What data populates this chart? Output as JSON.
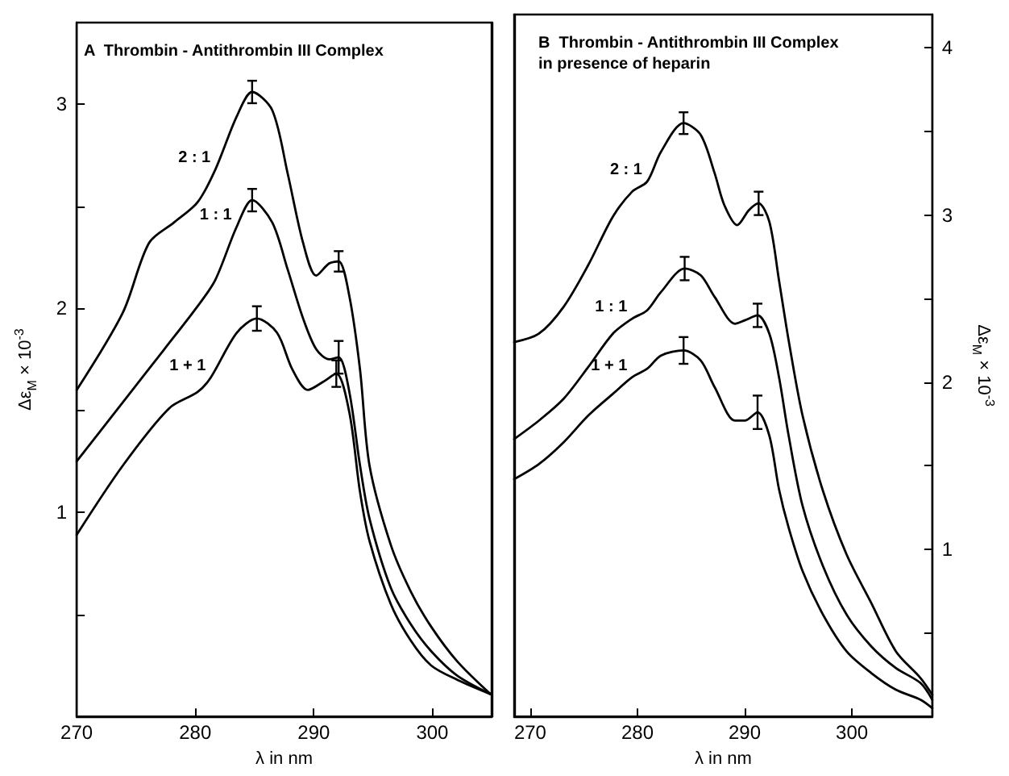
{
  "chart_data": [
    {
      "type": "line",
      "title": "A  Thrombin - Antithrombin III Complex",
      "xlabel": "λ in nm",
      "ylabel": "Δε$_{M}$ × 10$^{-3}$",
      "xlim": [
        270,
        305
      ],
      "xticks": [
        270,
        280,
        290,
        300
      ],
      "ylim": [
        0,
        3.4
      ],
      "yticks": [
        {
          "value": 0.5,
          "label": null
        },
        1,
        {
          "value": 1.5,
          "label": null
        },
        2,
        {
          "value": 2.5,
          "label": null
        },
        3
      ],
      "grid": false,
      "legend": false,
      "marker": "none",
      "line_style": "solid",
      "series": [
        {
          "name": "2 : 1",
          "color": "#000000",
          "x": [
            270,
            273.9,
            276.1,
            278.2,
            280.2,
            281.7,
            283.5,
            284.8,
            286.5,
            287.8,
            289.1,
            290.2,
            291.3,
            292.1,
            293,
            293.9,
            294.7,
            296.5,
            298.2,
            299.9,
            302.1,
            304.9
          ],
          "values": [
            1.6,
            1.98,
            2.32,
            2.42,
            2.52,
            2.68,
            2.94,
            3.06,
            2.97,
            2.66,
            2.32,
            2.16,
            2.22,
            2.23,
            2.06,
            1.7,
            1.23,
            0.84,
            0.61,
            0.44,
            0.27,
            0.11
          ],
          "errors": [
            null,
            null,
            null,
            null,
            null,
            null,
            null,
            0.055,
            null,
            null,
            null,
            null,
            null,
            0.05,
            null,
            null,
            null,
            null,
            null,
            null,
            null,
            null
          ]
        },
        {
          "name": "1 : 1",
          "color": "#000000",
          "x": [
            270,
            273.9,
            277.4,
            280.2,
            281.7,
            283.5,
            284.8,
            286.5,
            287.8,
            289.1,
            290.2,
            291.3,
            292.1,
            293,
            293.9,
            294.7,
            296.5,
            298.2,
            299.9,
            302.1,
            304.9
          ],
          "values": [
            1.25,
            1.54,
            1.8,
            2.01,
            2.14,
            2.4,
            2.53,
            2.42,
            2.19,
            1.95,
            1.8,
            1.75,
            1.76,
            1.59,
            1.23,
            0.97,
            0.63,
            0.45,
            0.32,
            0.2,
            0.11
          ],
          "errors": [
            null,
            null,
            null,
            null,
            null,
            null,
            0.055,
            null,
            null,
            null,
            null,
            null,
            0.08,
            null,
            null,
            null,
            null,
            null,
            null,
            null,
            null
          ]
        },
        {
          "name": "1 + 1",
          "color": "#000000",
          "x": [
            270,
            273.9,
            277.8,
            280.2,
            281.3,
            283.5,
            285.2,
            286.9,
            288.2,
            289.5,
            290.8,
            291.9,
            293,
            293.9,
            294.7,
            296.5,
            298.2,
            299.9,
            302.1,
            304.9
          ],
          "values": [
            0.89,
            1.23,
            1.51,
            1.59,
            1.66,
            1.88,
            1.95,
            1.88,
            1.7,
            1.6,
            1.64,
            1.68,
            1.49,
            1.1,
            0.86,
            0.55,
            0.37,
            0.25,
            0.18,
            0.11
          ],
          "errors": [
            null,
            null,
            null,
            null,
            null,
            null,
            0.06,
            null,
            null,
            null,
            null,
            0.065,
            null,
            null,
            null,
            null,
            null,
            null,
            null,
            null
          ]
        }
      ]
    },
    {
      "type": "line",
      "title": "B  Thrombin - Antithrombin III Complex",
      "subtitle": "in presence of heparin",
      "xlabel": "λ in nm",
      "y2label": "Δε$_{M}$ × 10$^{-3}$",
      "xlim": [
        268.5,
        307.5
      ],
      "xticks": [
        270,
        280,
        290,
        300
      ],
      "y2lim": [
        0,
        4.2
      ],
      "y2ticks": [
        {
          "value": 0.5,
          "label": null
        },
        1,
        {
          "value": 1.5,
          "label": null
        },
        2,
        {
          "value": 2.5,
          "label": null
        },
        3,
        {
          "value": 3.5,
          "label": null
        },
        4
      ],
      "grid": false,
      "legend": false,
      "marker": "none",
      "line_style": "solid",
      "series": [
        {
          "name": "2 : 1",
          "color": "#000000",
          "axis": "y2",
          "x": [
            268.5,
            270.8,
            273.1,
            275.4,
            277.7,
            279.5,
            280.9,
            282.2,
            284.3,
            285.9,
            287.2,
            288.1,
            289.3,
            290.4,
            291.3,
            292.3,
            293.2,
            294.1,
            295.4,
            297.3,
            299.5,
            301.8,
            304.1,
            306.4,
            307.5
          ],
          "values": [
            2.24,
            2.29,
            2.45,
            2.7,
            2.99,
            3.14,
            3.2,
            3.38,
            3.55,
            3.48,
            3.25,
            3.06,
            2.94,
            3.03,
            3.07,
            2.96,
            2.61,
            2.25,
            1.8,
            1.35,
            0.97,
            0.68,
            0.39,
            0.23,
            0.13
          ],
          "errors": [
            null,
            null,
            null,
            null,
            null,
            null,
            null,
            null,
            0.065,
            null,
            null,
            null,
            null,
            null,
            0.07,
            null,
            null,
            null,
            null,
            null,
            null,
            null,
            null,
            null,
            null
          ]
        },
        {
          "name": "1 : 1",
          "color": "#000000",
          "axis": "y2",
          "x": [
            268.5,
            270.8,
            273.1,
            275.4,
            277.7,
            279.5,
            280.9,
            282.2,
            284.4,
            285.9,
            287.2,
            289.1,
            290,
            291.2,
            292.3,
            293.2,
            294.1,
            295.4,
            297.3,
            299.5,
            301.8,
            304.1,
            306.4,
            307.5
          ],
          "values": [
            1.66,
            1.77,
            1.9,
            2.09,
            2.29,
            2.38,
            2.43,
            2.54,
            2.68,
            2.64,
            2.51,
            2.35,
            2.37,
            2.4,
            2.29,
            2.03,
            1.68,
            1.26,
            0.9,
            0.61,
            0.42,
            0.29,
            0.2,
            0.1
          ],
          "errors": [
            null,
            null,
            null,
            null,
            null,
            null,
            null,
            null,
            0.07,
            null,
            null,
            null,
            null,
            0.07,
            null,
            null,
            null,
            null,
            null,
            null,
            null,
            null,
            null,
            null
          ]
        },
        {
          "name": "1 + 1",
          "color": "#000000",
          "axis": "y2",
          "x": [
            268.5,
            270.8,
            273.1,
            275.4,
            277.7,
            279.5,
            280.9,
            282.2,
            284.3,
            285.9,
            287.2,
            289.1,
            290,
            291.2,
            292.3,
            293.2,
            294.1,
            295.4,
            297.3,
            299.5,
            301.8,
            304.1,
            306.4,
            307.5
          ],
          "values": [
            1.42,
            1.51,
            1.64,
            1.8,
            1.93,
            2.03,
            2.08,
            2.16,
            2.19,
            2.13,
            1.97,
            1.77,
            1.77,
            1.82,
            1.68,
            1.36,
            1.13,
            0.87,
            0.61,
            0.39,
            0.26,
            0.16,
            0.1,
            0.05
          ],
          "errors": [
            null,
            null,
            null,
            null,
            null,
            null,
            null,
            null,
            0.08,
            null,
            null,
            null,
            null,
            0.1,
            null,
            null,
            null,
            null,
            null,
            null,
            null,
            null,
            null,
            null
          ]
        }
      ]
    }
  ]
}
